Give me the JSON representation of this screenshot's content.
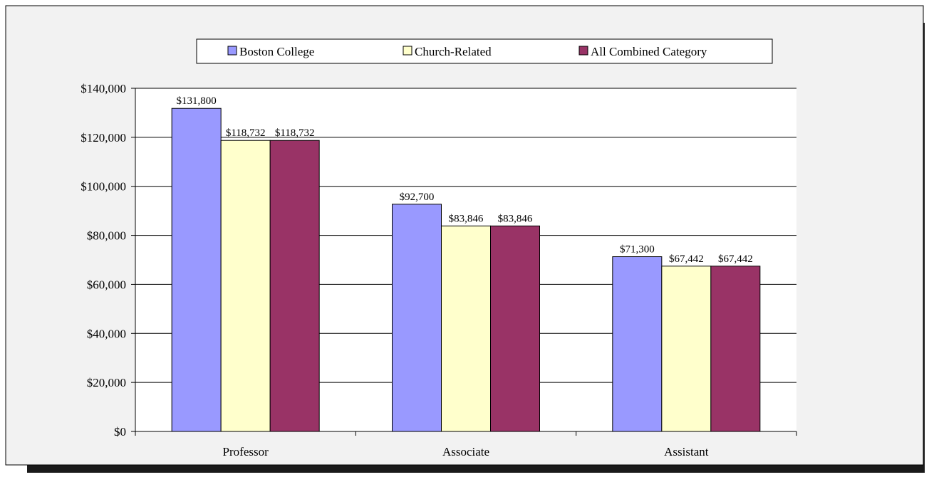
{
  "chart_data": {
    "type": "bar",
    "categories": [
      "Professor",
      "Associate",
      "Assistant"
    ],
    "series": [
      {
        "name": "Boston College",
        "values": [
          131800,
          92700,
          71300
        ],
        "color": "#9999ff"
      },
      {
        "name": "Church-Related",
        "values": [
          118732,
          83846,
          67442
        ],
        "color": "#ffffcc"
      },
      {
        "name": "All Combined Category",
        "values": [
          118732,
          83846,
          67442
        ],
        "color": "#993366"
      }
    ],
    "data_labels": [
      [
        "$131,800",
        "$118,732",
        "$118,732"
      ],
      [
        "$92,700",
        "$83,846",
        "$83,846"
      ],
      [
        "$71,300",
        "$67,442",
        "$67,442"
      ]
    ],
    "y_ticks": [
      0,
      20000,
      40000,
      60000,
      80000,
      100000,
      120000,
      140000
    ],
    "y_tick_labels": [
      "$0",
      "$20,000",
      "$40,000",
      "$60,000",
      "$80,000",
      "$100,000",
      "$120,000",
      "$140,000"
    ],
    "ylim": [
      0,
      140000
    ],
    "grid": true,
    "legend": "top",
    "title": "",
    "xlabel": "",
    "ylabel": "",
    "colors": {
      "chart_area_bg": "#f2f2f2",
      "plot_area_bg": "#ffffff",
      "gridline": "#000000",
      "shadow": "#1a1a1a"
    }
  }
}
